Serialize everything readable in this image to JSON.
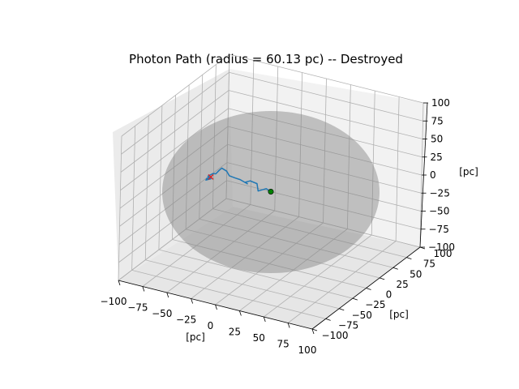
{
  "chart_data": {
    "type": "scatter",
    "projection": "3d",
    "title": "Photon Path (radius = 60.13 pc) -- Destroyed",
    "xlabel": "[pc]",
    "ylabel": "[pc]",
    "zlabel": "[pc]",
    "xlim": [
      -100,
      100
    ],
    "ylim": [
      -100,
      100
    ],
    "zlim": [
      -100,
      100
    ],
    "xticks": [
      "−100",
      "−75",
      "−50",
      "−25",
      "0",
      "25",
      "50",
      "75",
      "100"
    ],
    "yticks": [
      "−100",
      "−75",
      "−50",
      "−25",
      "0",
      "25",
      "50",
      "75",
      "100"
    ],
    "zticks": [
      "−100",
      "−75",
      "−50",
      "−25",
      "0",
      "25",
      "50",
      "75",
      "100"
    ],
    "grid": true,
    "sphere": {
      "radius": 60.13,
      "color": "#808080"
    },
    "series": [
      {
        "kind": "path",
        "color": "#1f77b4",
        "points": [
          [
            0,
            0,
            0
          ],
          [
            -6,
            2,
            1
          ],
          [
            -12,
            -2,
            -2
          ],
          [
            -16,
            3,
            4
          ],
          [
            -22,
            1,
            7
          ],
          [
            -28,
            3,
            2
          ],
          [
            -27,
            5,
            -1
          ],
          [
            -34,
            4,
            3
          ],
          [
            -40,
            6,
            2
          ],
          [
            -44,
            2,
            6
          ],
          [
            -48,
            4,
            10
          ],
          [
            -52,
            2,
            14
          ],
          [
            -56,
            4,
            8
          ],
          [
            -58,
            2,
            4
          ],
          [
            -62,
            4,
            2
          ],
          [
            -66,
            2,
            -2
          ],
          [
            -64,
            4,
            -6
          ],
          [
            -68,
            2,
            -8
          ],
          [
            -66,
            0,
            -4
          ],
          [
            -63,
            2,
            -2
          ]
        ]
      },
      {
        "kind": "start-marker",
        "color": "#008000",
        "points": [
          [
            0,
            0,
            0
          ]
        ]
      },
      {
        "kind": "end-marker",
        "color": "#d62728",
        "points": [
          [
            -63,
            2,
            -2
          ]
        ]
      }
    ]
  }
}
